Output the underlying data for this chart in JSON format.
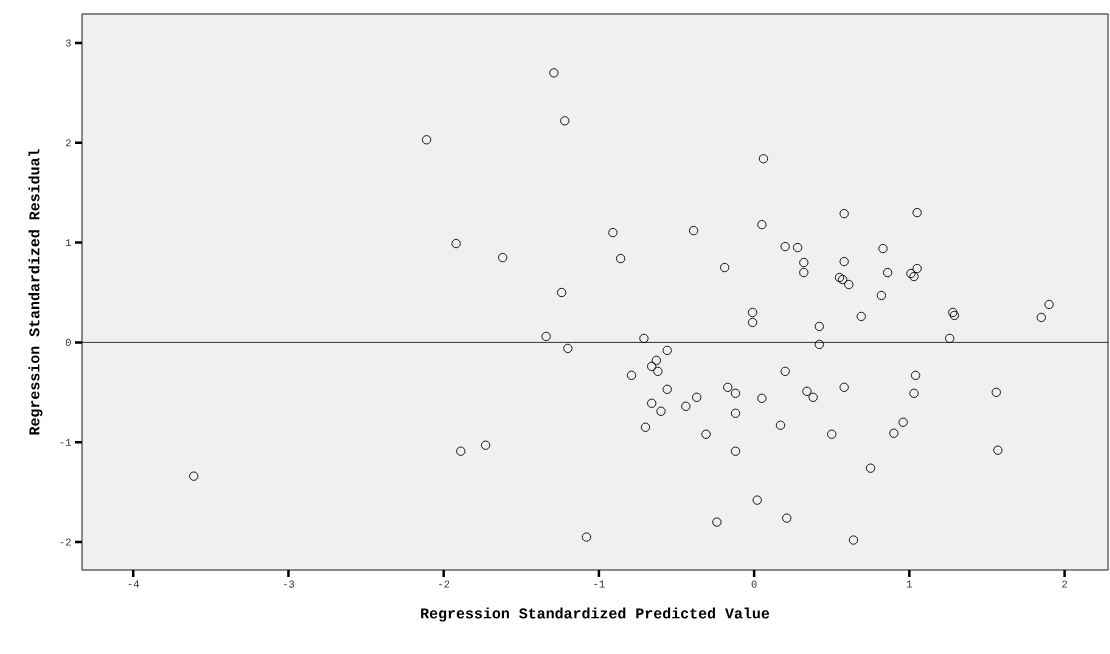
{
  "chart_data": {
    "type": "scatter",
    "xlabel": "Regression Standardized Predicted Value",
    "ylabel": "Regression Standardized Residual",
    "xlim": [
      -4.33,
      2.28
    ],
    "ylim": [
      -2.28,
      3.29
    ],
    "xticks": [
      -4,
      -3,
      -2,
      -1,
      0,
      1,
      2
    ],
    "yticks": [
      -2,
      -1,
      0,
      1,
      2,
      3
    ],
    "grid": false,
    "marker": "circle",
    "ref_lines": [
      {
        "axis": "y",
        "value": 0,
        "color": "#000000"
      }
    ],
    "series": [
      {
        "color": "#000000",
        "x": [
          -1.29,
          -1.22,
          -2.11,
          -1.92,
          -1.62,
          -1.24,
          -1.34,
          -1.2,
          -1.89,
          -1.73,
          -3.61,
          -1.08,
          0.06,
          0.58,
          1.05,
          -0.91,
          -0.39,
          0.05,
          -0.86,
          -0.19,
          0.2,
          0.28,
          0.32,
          0.32,
          0.58,
          0.83,
          0.86,
          0.55,
          0.57,
          0.61,
          0.82,
          1.05,
          1.01,
          1.03,
          1.9,
          -0.01,
          -0.01,
          0.42,
          0.69,
          1.28,
          1.29,
          1.85,
          -0.71,
          0.42,
          1.26,
          -0.56,
          -0.63,
          -0.66,
          -0.62,
          -0.79,
          0.2,
          1.04,
          -0.56,
          -0.37,
          -0.44,
          -0.66,
          -0.6,
          -0.7,
          -0.17,
          -0.12,
          -0.12,
          -0.31,
          -0.12,
          0.05,
          0.17,
          0.34,
          0.38,
          0.58,
          0.5,
          0.9,
          0.96,
          1.03,
          1.56,
          1.57,
          0.75,
          0.02,
          -0.24,
          0.21,
          0.64
        ],
        "values": [
          2.7,
          2.22,
          2.03,
          0.99,
          0.85,
          0.5,
          0.06,
          -0.06,
          -1.09,
          -1.03,
          -1.34,
          -1.95,
          1.84,
          1.29,
          1.3,
          1.1,
          1.12,
          1.18,
          0.84,
          0.75,
          0.96,
          0.95,
          0.8,
          0.7,
          0.81,
          0.94,
          0.7,
          0.65,
          0.63,
          0.58,
          0.47,
          0.74,
          0.69,
          0.66,
          0.38,
          0.3,
          0.2,
          0.16,
          0.26,
          0.3,
          0.27,
          0.25,
          0.04,
          -0.02,
          0.04,
          -0.08,
          -0.18,
          -0.24,
          -0.29,
          -0.33,
          -0.29,
          -0.33,
          -0.47,
          -0.55,
          -0.64,
          -0.61,
          -0.69,
          -0.85,
          -0.45,
          -0.51,
          -0.71,
          -0.92,
          -1.09,
          -0.56,
          -0.83,
          -0.49,
          -0.55,
          -0.45,
          -0.92,
          -0.91,
          -0.8,
          -0.51,
          -0.5,
          -1.08,
          -1.26,
          -1.58,
          -1.8,
          -1.76,
          -1.98
        ]
      }
    ]
  }
}
